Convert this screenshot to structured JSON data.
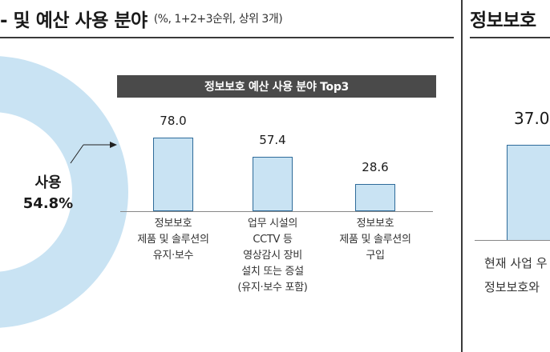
{
  "heading_left": {
    "main": "- 및 예산 사용 분야",
    "note": "(%, 1+2+3순위, 상위 3개)"
  },
  "heading_right": {
    "main": "정보보호"
  },
  "donut": {
    "label": "사용",
    "value": "54.8%",
    "share": 54.8,
    "color": "#c9e3f3"
  },
  "chart_data": {
    "type": "bar",
    "title": "정보보호 예산 사용 분야 Top3",
    "categories": [
      "정보보호\n제품 및 솔루션의\n유지·보수",
      "업무 시설의\nCCTV 등\n영상감시 장비\n설치 또는 증설\n(유지·보수 포함)",
      "정보보호\n제품 및 솔루션의\n구입"
    ],
    "values": [
      78.0,
      57.4,
      28.6
    ],
    "value_labels": [
      "78.0",
      "57.4",
      "28.6"
    ],
    "ylim": [
      0,
      100
    ],
    "bar_color": "#c9e3f3",
    "bar_border": "#2e6b9a"
  },
  "right_panel": {
    "value_label": "37.0",
    "value": 37.0,
    "line1": "현재 사업 우",
    "line2": "정보보호와"
  }
}
